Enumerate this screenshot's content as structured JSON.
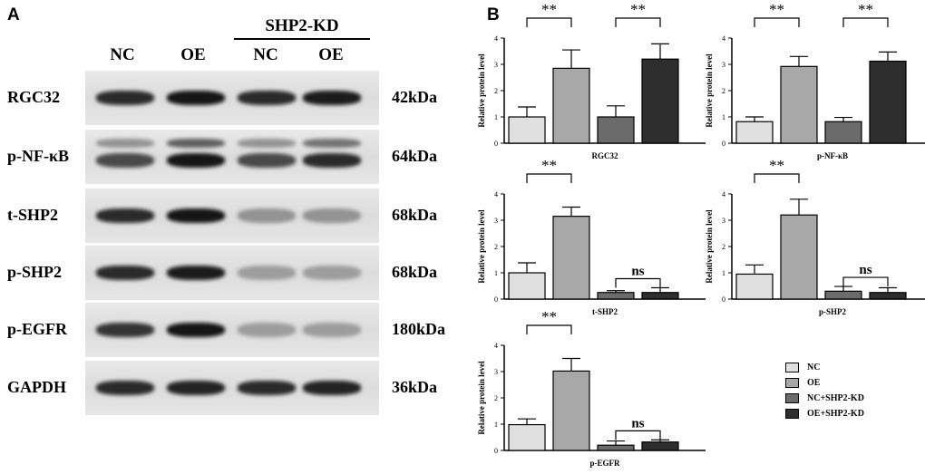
{
  "panel_a": {
    "letter": "A",
    "group_label": "SHP2-KD",
    "lane_labels": [
      "NC",
      "OE",
      "NC",
      "OE"
    ],
    "rows": [
      {
        "protein": "RGC32",
        "size": "42kDa",
        "intensity": [
          0.85,
          0.95,
          0.85,
          0.92
        ],
        "second_band": [
          0,
          0,
          0,
          0
        ]
      },
      {
        "protein": "p-NF-κB",
        "size": "64kDa",
        "intensity": [
          0.7,
          0.95,
          0.7,
          0.85
        ],
        "second_band": [
          0.35,
          0.6,
          0.35,
          0.5
        ]
      },
      {
        "protein": "t-SHP2",
        "size": "68kDa",
        "intensity": [
          0.85,
          0.95,
          0.35,
          0.35
        ],
        "second_band": [
          0,
          0,
          0,
          0
        ]
      },
      {
        "protein": "p-SHP2",
        "size": "68kDa",
        "intensity": [
          0.85,
          0.92,
          0.3,
          0.3
        ],
        "second_band": [
          0,
          0,
          0,
          0
        ]
      },
      {
        "protein": "p-EGFR",
        "size": "180kDa",
        "intensity": [
          0.8,
          0.95,
          0.3,
          0.3
        ],
        "second_band": [
          0,
          0,
          0,
          0
        ]
      },
      {
        "protein": "GAPDH",
        "size": "36kDa",
        "intensity": [
          0.85,
          0.88,
          0.85,
          0.88
        ],
        "second_band": [
          0,
          0,
          0,
          0
        ]
      }
    ]
  },
  "panel_b": {
    "letter": "B",
    "y_axis_label": "Relative protein level"
  },
  "legend": [
    {
      "label": "NC",
      "color": "#e0e0e0"
    },
    {
      "label": "OE",
      "color": "#a8a8a8"
    },
    {
      "label": "NC+SHP2-KD",
      "color": "#6b6b6b"
    },
    {
      "label": "OE+SHP2-KD",
      "color": "#2e2e2e"
    }
  ],
  "chart_data": [
    {
      "type": "bar",
      "xlabel": "RGC32",
      "ylabel": "Relative protein level",
      "ylim": [
        0,
        4
      ],
      "categories": [
        "NC",
        "OE",
        "NC+SHP2-KD",
        "OE+SHP2-KD"
      ],
      "values": [
        1.0,
        2.85,
        1.0,
        3.2
      ],
      "errors": [
        0.38,
        0.7,
        0.42,
        0.58
      ],
      "significance": [
        {
          "from": 0,
          "to": 1,
          "label": "**"
        },
        {
          "from": 2,
          "to": 3,
          "label": "**"
        }
      ]
    },
    {
      "type": "bar",
      "xlabel": "p-NF-κB",
      "ylabel": "Relative protein level",
      "ylim": [
        0,
        4
      ],
      "categories": [
        "NC",
        "OE",
        "NC+SHP2-KD",
        "OE+SHP2-KD"
      ],
      "values": [
        0.82,
        2.92,
        0.82,
        3.12
      ],
      "errors": [
        0.18,
        0.38,
        0.16,
        0.35
      ],
      "significance": [
        {
          "from": 0,
          "to": 1,
          "label": "**"
        },
        {
          "from": 2,
          "to": 3,
          "label": "**"
        }
      ]
    },
    {
      "type": "bar",
      "xlabel": "t-SHP2",
      "ylabel": "Relative protein level",
      "ylim": [
        0,
        4
      ],
      "categories": [
        "NC",
        "OE",
        "NC+SHP2-KD",
        "OE+SHP2-KD"
      ],
      "values": [
        1.0,
        3.15,
        0.25,
        0.25
      ],
      "errors": [
        0.38,
        0.35,
        0.07,
        0.18
      ],
      "significance": [
        {
          "from": 0,
          "to": 1,
          "label": "**"
        },
        {
          "from": 2,
          "to": 3,
          "label": "ns"
        }
      ]
    },
    {
      "type": "bar",
      "xlabel": "p-SHP2",
      "ylabel": "Relative protein level",
      "ylim": [
        0,
        4
      ],
      "categories": [
        "NC",
        "OE",
        "NC+SHP2-KD",
        "OE+SHP2-KD"
      ],
      "values": [
        0.95,
        3.2,
        0.3,
        0.25
      ],
      "errors": [
        0.35,
        0.6,
        0.18,
        0.18
      ],
      "significance": [
        {
          "from": 0,
          "to": 1,
          "label": "**"
        },
        {
          "from": 2,
          "to": 3,
          "label": "ns"
        }
      ]
    },
    {
      "type": "bar",
      "xlabel": "p-EGFR",
      "ylabel": "Relative protein level",
      "ylim": [
        0,
        4
      ],
      "categories": [
        "NC",
        "OE",
        "NC+SHP2-KD",
        "OE+SHP2-KD"
      ],
      "values": [
        0.98,
        3.02,
        0.2,
        0.32
      ],
      "errors": [
        0.22,
        0.48,
        0.16,
        0.08
      ],
      "significance": [
        {
          "from": 0,
          "to": 1,
          "label": "**"
        },
        {
          "from": 2,
          "to": 3,
          "label": "ns"
        }
      ]
    }
  ]
}
